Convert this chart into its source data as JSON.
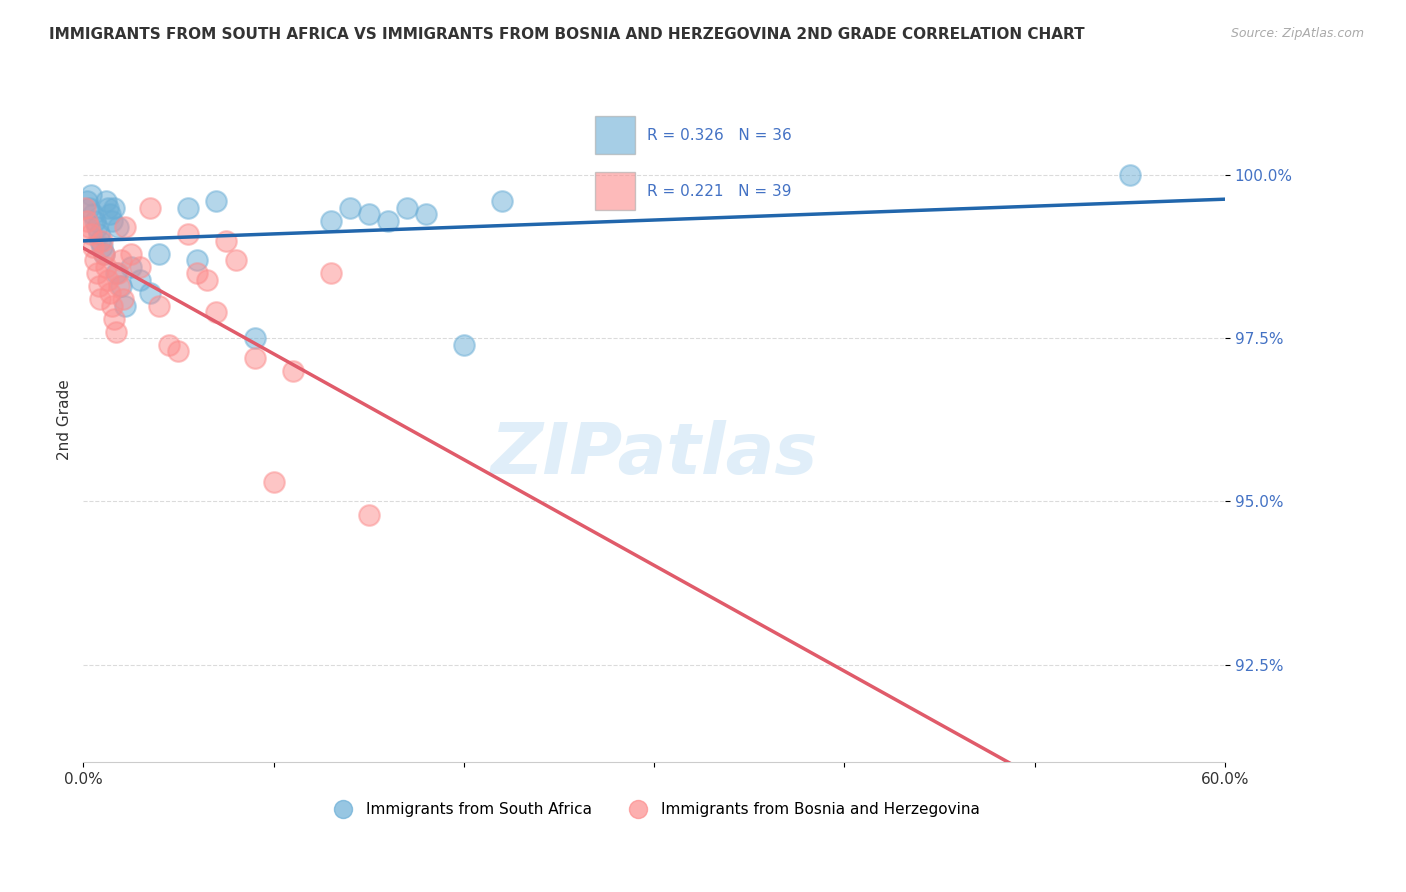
{
  "title": "IMMIGRANTS FROM SOUTH AFRICA VS IMMIGRANTS FROM BOSNIA AND HERZEGOVINA 2ND GRADE CORRELATION CHART",
  "source": "Source: ZipAtlas.com",
  "ylabel": "2nd Grade",
  "y_ticks": [
    92.5,
    95.0,
    97.5,
    100.0
  ],
  "y_tick_labels": [
    "92.5%",
    "95.0%",
    "97.5%",
    "100.0%"
  ],
  "x_range": [
    0.0,
    60.0
  ],
  "y_range": [
    91.0,
    101.5
  ],
  "blue_R": 0.326,
  "blue_N": 36,
  "pink_R": 0.221,
  "pink_N": 39,
  "blue_label": "Immigrants from South Africa",
  "pink_label": "Immigrants from Bosnia and Herzegovina",
  "blue_color": "#6baed6",
  "pink_color": "#fc8d8d",
  "blue_line_color": "#2166ac",
  "pink_line_color": "#e05b6a",
  "blue_x": [
    0.2,
    0.3,
    0.4,
    0.5,
    0.6,
    0.7,
    0.8,
    0.9,
    1.0,
    1.1,
    1.2,
    1.3,
    1.4,
    1.5,
    1.6,
    1.7,
    1.8,
    2.0,
    2.2,
    2.5,
    3.0,
    3.5,
    4.0,
    5.5,
    6.0,
    7.0,
    9.0,
    13.0,
    14.0,
    15.0,
    16.0,
    17.0,
    18.0,
    20.0,
    22.0,
    55.0
  ],
  "blue_y": [
    99.6,
    99.5,
    99.7,
    99.4,
    99.3,
    99.2,
    99.1,
    99.0,
    98.9,
    98.8,
    99.6,
    99.5,
    99.4,
    99.3,
    99.5,
    98.5,
    99.2,
    98.3,
    98.0,
    98.6,
    98.4,
    98.2,
    98.8,
    99.5,
    98.7,
    99.6,
    97.5,
    99.3,
    99.5,
    99.4,
    99.3,
    99.5,
    99.4,
    97.4,
    99.6,
    100.0
  ],
  "pink_x": [
    0.1,
    0.2,
    0.3,
    0.4,
    0.5,
    0.6,
    0.7,
    0.8,
    0.9,
    1.0,
    1.1,
    1.2,
    1.3,
    1.4,
    1.5,
    1.6,
    1.7,
    1.8,
    1.9,
    2.0,
    2.1,
    2.2,
    2.5,
    3.0,
    3.5,
    4.0,
    4.5,
    5.0,
    5.5,
    6.0,
    6.5,
    7.0,
    7.5,
    8.0,
    9.0,
    10.0,
    11.0,
    13.0,
    15.0
  ],
  "pink_y": [
    99.5,
    99.3,
    99.2,
    99.1,
    98.9,
    98.7,
    98.5,
    98.3,
    98.1,
    99.0,
    98.8,
    98.6,
    98.4,
    98.2,
    98.0,
    97.8,
    97.6,
    98.5,
    98.3,
    98.7,
    98.1,
    99.2,
    98.8,
    98.6,
    99.5,
    98.0,
    97.4,
    97.3,
    99.1,
    98.5,
    98.4,
    97.9,
    99.0,
    98.7,
    97.2,
    95.3,
    97.0,
    98.5,
    94.8
  ]
}
